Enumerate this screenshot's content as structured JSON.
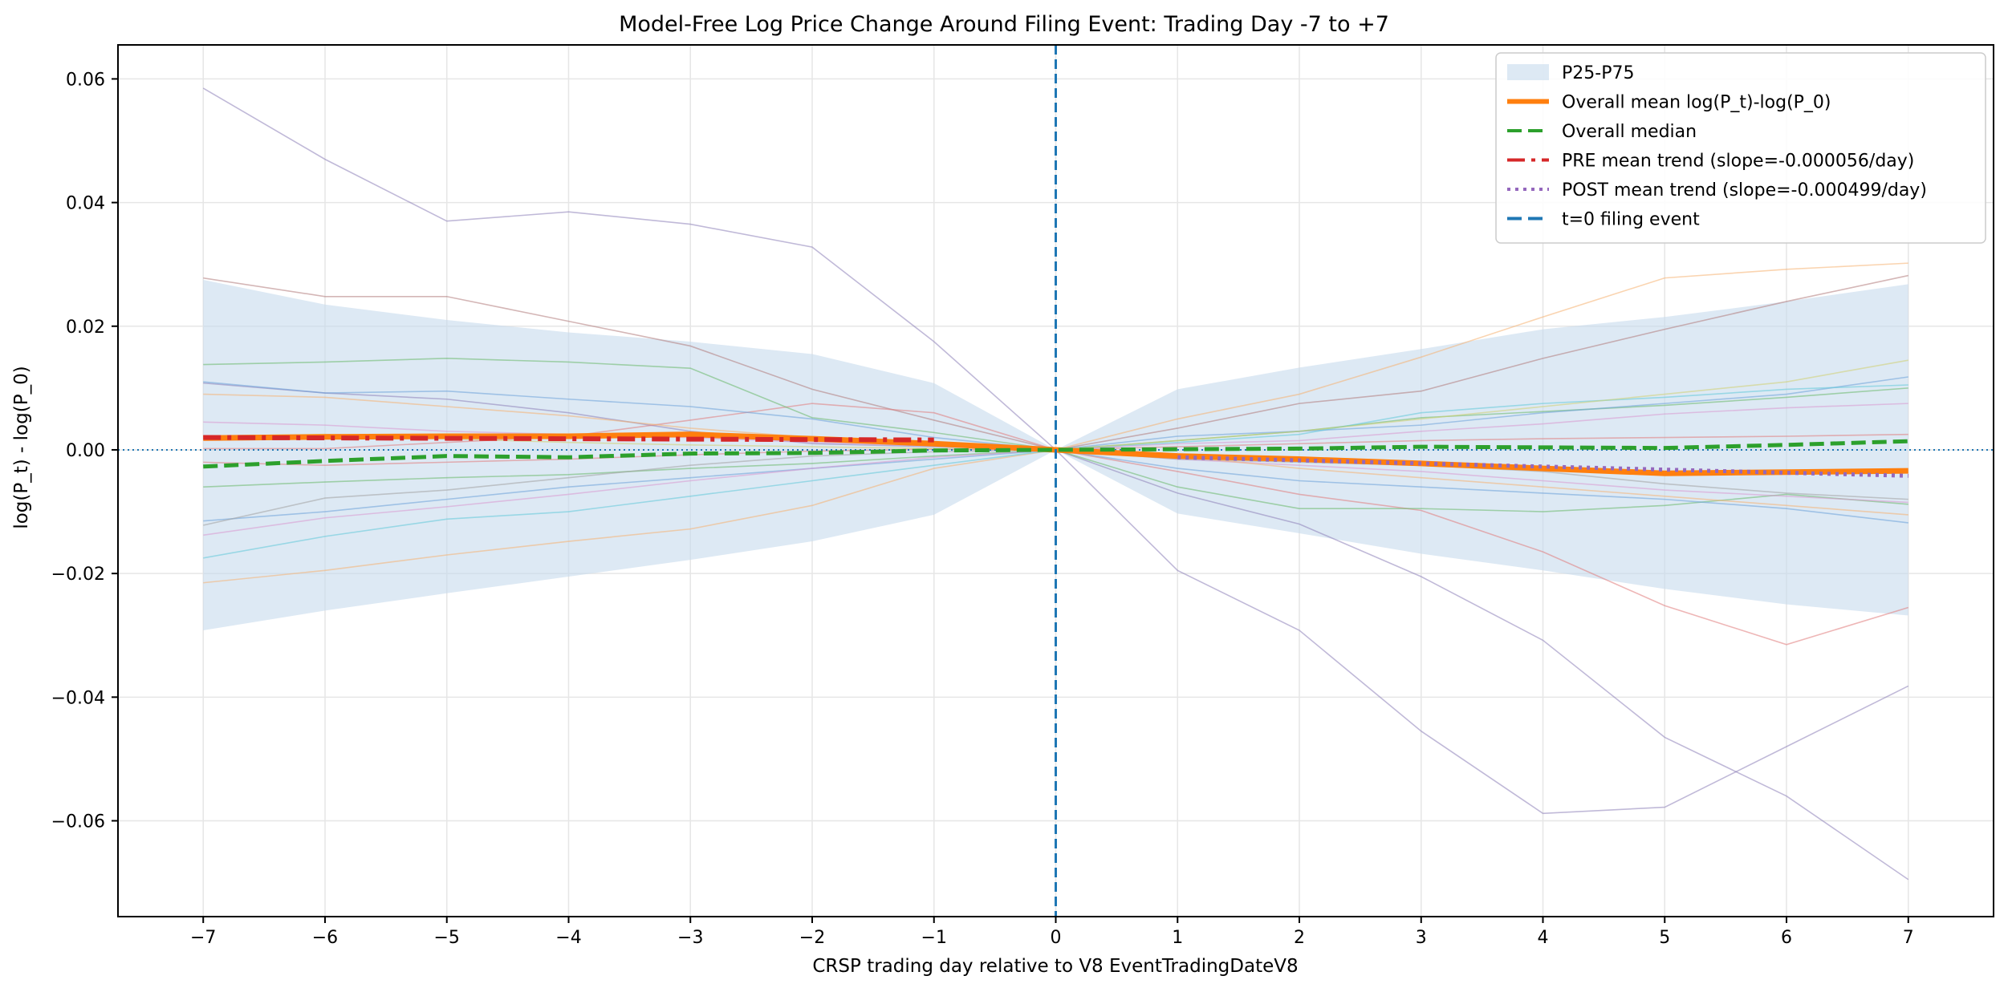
{
  "chart_data": {
    "type": "line",
    "title": "Model-Free Log Price Change Around Filing Event: Trading Day -7 to +7",
    "xlabel": "CRSP trading day relative to V8 EventTradingDateV8",
    "ylabel": "log(P_t) - log(P_0)",
    "xlim": [
      -7.7,
      7.7
    ],
    "ylim": [
      -0.0755,
      0.0655
    ],
    "grid": true,
    "legend_position": "top-right",
    "x": [
      -7,
      -6,
      -5,
      -4,
      -3,
      -2,
      -1,
      0,
      1,
      2,
      3,
      4,
      5,
      6,
      7
    ],
    "x_tick_labels": [
      "−7",
      "−6",
      "−5",
      "−4",
      "−3",
      "−2",
      "−1",
      "0",
      "1",
      "2",
      "3",
      "4",
      "5",
      "6",
      "7"
    ],
    "y_ticks": [
      -0.06,
      -0.04,
      -0.02,
      0.0,
      0.02,
      0.04,
      0.06
    ],
    "y_tick_labels": [
      "−0.06",
      "−0.04",
      "−0.02",
      "0.00",
      "0.02",
      "0.04",
      "0.06"
    ],
    "band": {
      "name": "P25-P75",
      "color": "#c6dbec",
      "upper": [
        0.0275,
        0.0235,
        0.021,
        0.019,
        0.0175,
        0.0155,
        0.0108,
        0.0,
        0.0098,
        0.0133,
        0.0163,
        0.0195,
        0.0215,
        0.024,
        0.0268
      ],
      "lower": [
        -0.0292,
        -0.026,
        -0.0232,
        -0.0205,
        -0.0178,
        -0.0148,
        -0.0105,
        0.0,
        -0.0103,
        -0.0135,
        -0.0168,
        -0.0195,
        -0.0225,
        -0.025,
        -0.0268
      ]
    },
    "individual_series": [
      {
        "color": "#8c7fb8",
        "values": [
          0.0585,
          0.047,
          0.037,
          0.0385,
          0.0365,
          0.0328,
          0.0175,
          0.0,
          -0.0195,
          -0.0292,
          -0.0455,
          -0.0588,
          -0.0578,
          -0.048,
          -0.0382
        ]
      },
      {
        "color": "#8c7fb8",
        "values": [
          0.0108,
          0.0092,
          0.0082,
          0.006,
          0.003,
          0.001,
          0.0005,
          0.0,
          -0.007,
          -0.012,
          -0.0205,
          -0.0308,
          -0.0465,
          -0.056,
          -0.0695
        ]
      },
      {
        "color": "#b07a7a",
        "values": [
          0.0278,
          0.0248,
          0.0248,
          0.0208,
          0.0168,
          0.0098,
          0.0048,
          0.0,
          0.0035,
          0.0075,
          0.0095,
          0.0148,
          0.0195,
          0.024,
          0.0282
        ]
      },
      {
        "color": "#e07a7a",
        "values": [
          0.0002,
          0.0002,
          0.0012,
          0.0022,
          0.0048,
          0.0075,
          0.006,
          0.0,
          -0.0035,
          -0.0072,
          -0.0098,
          -0.0165,
          -0.0252,
          -0.0315,
          -0.0255
        ]
      },
      {
        "color": "#f5b070",
        "values": [
          -0.0215,
          -0.0195,
          -0.017,
          -0.0148,
          -0.0128,
          -0.009,
          -0.003,
          0.0,
          0.005,
          0.009,
          0.015,
          0.0215,
          0.0278,
          0.0292,
          0.0302
        ]
      },
      {
        "color": "#68b868",
        "values": [
          0.0138,
          0.0142,
          0.0148,
          0.0142,
          0.0132,
          0.0052,
          0.0028,
          0.0,
          -0.006,
          -0.0095,
          -0.0095,
          -0.01,
          -0.009,
          -0.0072,
          -0.0088
        ]
      },
      {
        "color": "#68b868",
        "values": [
          -0.006,
          -0.0052,
          -0.0045,
          -0.004,
          -0.003,
          -0.0022,
          -0.001,
          0.0,
          0.0015,
          0.003,
          0.0052,
          0.0062,
          0.0072,
          0.0085,
          0.01
        ]
      },
      {
        "color": "#6aa0d8",
        "values": [
          0.011,
          0.0092,
          0.0095,
          0.0082,
          0.007,
          0.005,
          0.002,
          0.0,
          -0.003,
          -0.005,
          -0.006,
          -0.007,
          -0.008,
          -0.0095,
          -0.0118
        ]
      },
      {
        "color": "#6aa0d8",
        "values": [
          -0.0115,
          -0.01,
          -0.008,
          -0.006,
          -0.0045,
          -0.003,
          -0.0015,
          0.0,
          0.0022,
          0.003,
          0.004,
          0.006,
          0.0075,
          0.009,
          0.0118
        ]
      },
      {
        "color": "#5ec8d8",
        "values": [
          -0.0175,
          -0.014,
          -0.0112,
          -0.01,
          -0.0075,
          -0.005,
          -0.0025,
          0.0,
          0.0012,
          0.0025,
          0.006,
          0.0075,
          0.0085,
          0.0098,
          0.0105
        ]
      },
      {
        "color": "#d898d0",
        "values": [
          -0.0138,
          -0.011,
          -0.0092,
          -0.0072,
          -0.005,
          -0.003,
          -0.0012,
          0.0,
          0.001,
          0.0015,
          0.003,
          0.0042,
          0.0058,
          0.0068,
          0.0075
        ]
      },
      {
        "color": "#d898d0",
        "values": [
          0.0045,
          0.004,
          0.003,
          0.0025,
          0.002,
          0.0012,
          0.0006,
          0.0,
          -0.0015,
          -0.0025,
          -0.0035,
          -0.005,
          -0.0065,
          -0.0075,
          -0.0085
        ]
      },
      {
        "color": "#a0a0a0",
        "values": [
          -0.0122,
          -0.0078,
          -0.0065,
          -0.0045,
          -0.0025,
          -0.001,
          -0.0003,
          0.0,
          -0.0015,
          -0.002,
          -0.0025,
          -0.0035,
          -0.0055,
          -0.007,
          -0.008
        ]
      },
      {
        "color": "#d0d070",
        "values": [
          0.0022,
          0.0025,
          0.0018,
          0.0012,
          0.0008,
          0.0005,
          0.0002,
          0.0,
          0.0015,
          0.003,
          0.005,
          0.007,
          0.009,
          0.011,
          0.0145
        ]
      },
      {
        "color": "#f5b070",
        "values": [
          0.009,
          0.0085,
          0.007,
          0.0055,
          0.0035,
          0.002,
          0.001,
          0.0,
          -0.001,
          -0.003,
          -0.0045,
          -0.006,
          -0.0075,
          -0.009,
          -0.0105
        ]
      },
      {
        "color": "#e07a7a",
        "values": [
          -0.002,
          -0.0025,
          -0.002,
          -0.0015,
          -0.0008,
          -0.0002,
          0.0001,
          0.0,
          0.0005,
          0.001,
          0.0015,
          0.0018,
          0.002,
          0.0022,
          0.0025
        ]
      }
    ],
    "series": [
      {
        "name": "Overall mean log(P_t)-log(P_0)",
        "color": "#ff7f0e",
        "style": "solid",
        "width": 7,
        "values": [
          0.0019,
          0.0021,
          0.0022,
          0.0022,
          0.0025,
          0.0018,
          0.001,
          0.0,
          -0.001,
          -0.0015,
          -0.0022,
          -0.003,
          -0.0038,
          -0.0036,
          -0.0034
        ]
      },
      {
        "name": "Overall median",
        "color": "#2ca02c",
        "style": "dashed",
        "width": 5,
        "values": [
          -0.0027,
          -0.0018,
          -0.001,
          -0.0012,
          -0.0006,
          -0.0005,
          -0.0001,
          0.0,
          0.0001,
          0.0002,
          0.0005,
          0.0004,
          0.0003,
          0.0008,
          0.0014
        ]
      },
      {
        "name": "PRE mean trend (slope=-0.000056/day)",
        "color": "#d62728",
        "style": "dashdot",
        "width": 6,
        "x": [
          -7,
          -1
        ],
        "values": [
          0.002,
          0.0016
        ]
      },
      {
        "name": "POST mean trend (slope=-0.000499/day)",
        "color": "#9467bd",
        "style": "dotted",
        "width": 5,
        "x": [
          1,
          7
        ],
        "values": [
          -0.0012,
          -0.0042
        ]
      }
    ],
    "vline": {
      "name": "t=0 filing event",
      "x": 0,
      "color": "#1f77b4"
    },
    "hline": {
      "y": 0,
      "color": "#1f77b4"
    },
    "legend": [
      {
        "label": "P25-P75",
        "kind": "patch",
        "color": "#c6dbec"
      },
      {
        "label": "Overall mean log(P_t)-log(P_0)",
        "kind": "line",
        "color": "#ff7f0e",
        "style": "solid"
      },
      {
        "label": "Overall median",
        "kind": "line",
        "color": "#2ca02c",
        "style": "dashed"
      },
      {
        "label": "PRE mean trend (slope=-0.000056/day)",
        "kind": "line",
        "color": "#d62728",
        "style": "dashdot"
      },
      {
        "label": "POST mean trend (slope=-0.000499/day)",
        "kind": "line",
        "color": "#9467bd",
        "style": "dotted"
      },
      {
        "label": "t=0 filing event",
        "kind": "line",
        "color": "#1f77b4",
        "style": "dashed"
      }
    ]
  }
}
